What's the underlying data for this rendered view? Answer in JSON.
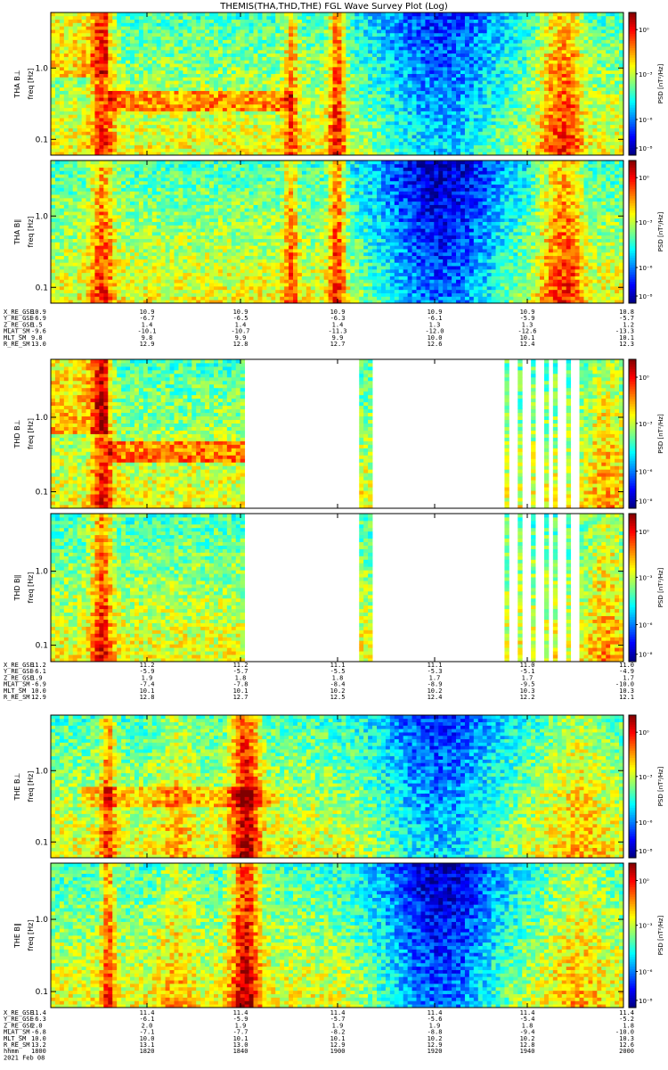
{
  "title": "THEMIS(THA,THD,THE) FGL Wave Survey Plot (Log)",
  "chart_data": {
    "type": "heatmap",
    "yscale": "log",
    "ylim_hz": [
      0.06,
      6.0
    ],
    "y_ticks": [
      {
        "value": 0.1,
        "label": "0.1"
      },
      {
        "value": 1.0,
        "label": "1.0"
      }
    ],
    "colorbar_scale": "log",
    "colorbar_ticks": [
      "10⁰",
      "10⁻³",
      "10⁻⁶",
      "10⁻⁸"
    ],
    "colorbar_label": "PSD [nT²/Hz]",
    "panels": [
      {
        "probe": "THA",
        "component": "B⊥",
        "ylabel": "THA B⊥",
        "unit_label": "freq [Hz]",
        "colorbar_ticks": [
          "10⁰",
          "10⁻³",
          "10⁻⁶",
          "10⁻⁸"
        ]
      },
      {
        "probe": "THA",
        "component": "B∥",
        "ylabel": "THA B∥",
        "unit_label": "freq [Hz]",
        "colorbar_ticks": [
          "10⁰",
          "10⁻³",
          "10⁻⁶",
          "10⁻⁸"
        ]
      },
      {
        "probe": "THD",
        "component": "B⊥",
        "ylabel": "THD B⊥",
        "unit_label": "freq [Hz]",
        "colorbar_ticks": [
          "10⁰",
          "10⁻³",
          "10⁻⁶",
          "10⁻⁸"
        ]
      },
      {
        "probe": "THD",
        "component": "B∥",
        "ylabel": "THD B∥",
        "unit_label": "freq [Hz]",
        "colorbar_ticks": [
          "10⁰",
          "10⁻³",
          "10⁻⁶",
          "10⁻⁸"
        ]
      },
      {
        "probe": "THE",
        "component": "B⊥",
        "ylabel": "THE B⊥",
        "unit_label": "freq [Hz]",
        "colorbar_ticks": [
          "10⁰",
          "10⁻³",
          "10⁻⁶",
          "10⁻⁸"
        ]
      },
      {
        "probe": "THE",
        "component": "B∥",
        "ylabel": "THE B∥",
        "unit_label": "freq [Hz]",
        "colorbar_ticks": [
          "10⁰",
          "10⁻³",
          "10⁻⁶",
          "10⁻⁸"
        ]
      }
    ],
    "ephemeris": [
      {
        "probe": "THA",
        "labels": [
          "X_RE_GSE",
          "Y_RE_GSE",
          "Z_RE_GSE",
          "MLAT_SM",
          "MLT_SM",
          "R_RE_SM"
        ],
        "columns": [
          [
            "10.9",
            "-6.9",
            "1.5",
            "-9.6",
            "9.8",
            "13.0"
          ],
          [
            "10.9",
            "-6.7",
            "1.4",
            "-10.1",
            "9.8",
            "12.9"
          ],
          [
            "10.9",
            "-6.5",
            "1.4",
            "-10.7",
            "9.9",
            "12.8"
          ],
          [
            "10.9",
            "-6.3",
            "1.4",
            "-11.3",
            "9.9",
            "12.7"
          ],
          [
            "10.9",
            "-6.1",
            "1.3",
            "-12.0",
            "10.0",
            "12.6"
          ],
          [
            "10.9",
            "-5.9",
            "1.3",
            "-12.6",
            "10.1",
            "12.4"
          ],
          [
            "10.8",
            "-5.7",
            "1.2",
            "-13.3",
            "10.1",
            "12.3"
          ]
        ]
      },
      {
        "probe": "THD",
        "labels": [
          "X_RE_GSE",
          "Y_RE_GSE",
          "Z_RE_GSE",
          "MLAT_SM",
          "MLT_SM",
          "R_RE_SM"
        ],
        "columns": [
          [
            "11.2",
            "-6.1",
            "1.9",
            "-6.9",
            "10.0",
            "12.9"
          ],
          [
            "11.2",
            "-5.9",
            "1.9",
            "-7.4",
            "10.1",
            "12.8"
          ],
          [
            "11.2",
            "-5.7",
            "1.8",
            "-7.8",
            "10.1",
            "12.7"
          ],
          [
            "11.1",
            "-5.5",
            "1.8",
            "-8.4",
            "10.2",
            "12.5"
          ],
          [
            "11.1",
            "-5.3",
            "1.7",
            "-8.9",
            "10.2",
            "12.4"
          ],
          [
            "11.0",
            "-5.1",
            "1.7",
            "-9.5",
            "10.3",
            "12.2"
          ],
          [
            "11.0",
            "-4.9",
            "1.7",
            "-10.0",
            "10.3",
            "12.1"
          ]
        ]
      },
      {
        "probe": "THE",
        "labels": [
          "X_RE_GSE",
          "Y_RE_GSE",
          "Z_RE_GSE",
          "MLAT_SM",
          "MLT_SM",
          "R_RE_SM",
          "hhmm",
          "2021 Feb 08"
        ],
        "columns": [
          [
            "11.4",
            "-6.3",
            "2.0",
            "-6.8",
            "10.0",
            "13.2",
            "1800"
          ],
          [
            "11.4",
            "-6.1",
            "2.0",
            "-7.1",
            "10.0",
            "13.1",
            "1820"
          ],
          [
            "11.4",
            "-5.9",
            "1.9",
            "-7.7",
            "10.1",
            "13.0",
            "1840"
          ],
          [
            "11.4",
            "-5.7",
            "1.9",
            "-8.2",
            "10.1",
            "12.9",
            "1900"
          ],
          [
            "11.4",
            "-5.6",
            "1.9",
            "-8.8",
            "10.2",
            "12.9",
            "1920"
          ],
          [
            "11.4",
            "-5.4",
            "1.8",
            "-9.4",
            "10.2",
            "12.8",
            "1940"
          ],
          [
            "11.4",
            "-5.2",
            "1.8",
            "-10.0",
            "10.3",
            "12.6",
            "2000"
          ]
        ]
      }
    ],
    "time_axis": {
      "label": "hhmm",
      "ticks": [
        "1800",
        "1820",
        "1840",
        "1900",
        "1920",
        "1940",
        "2000"
      ],
      "date": "2021 Feb 08"
    }
  }
}
